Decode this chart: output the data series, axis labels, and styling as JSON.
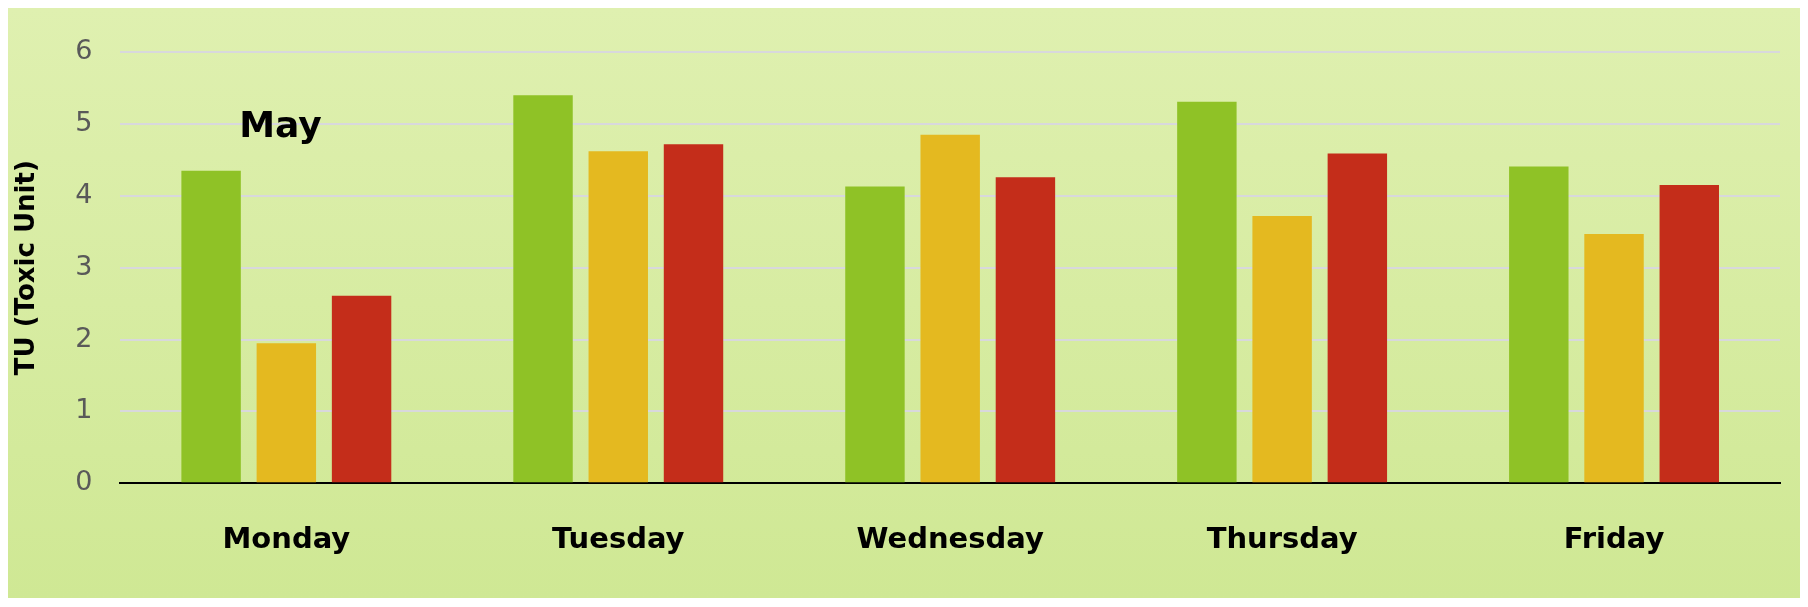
{
  "chart_data": {
    "type": "bar",
    "ylabel": "TU (Toxic Unit)",
    "annotations": [
      "May"
    ],
    "categories": [
      "Monday",
      "Tuesday",
      "Wednesday",
      "Thursday",
      "Friday"
    ],
    "series": [
      {
        "color": "#8fc226",
        "values": [
          4.35,
          5.4,
          4.13,
          5.31,
          4.41
        ]
      },
      {
        "color": "#e4b920",
        "values": [
          1.95,
          4.62,
          4.85,
          3.72,
          3.47
        ]
      },
      {
        "color": "#c42d1a",
        "values": [
          2.61,
          4.72,
          4.26,
          4.59,
          4.15
        ]
      }
    ],
    "ylim": [
      0,
      6
    ],
    "yticks": [
      0,
      1,
      2,
      3,
      4,
      5,
      6
    ],
    "grid": "y",
    "legend": false
  }
}
